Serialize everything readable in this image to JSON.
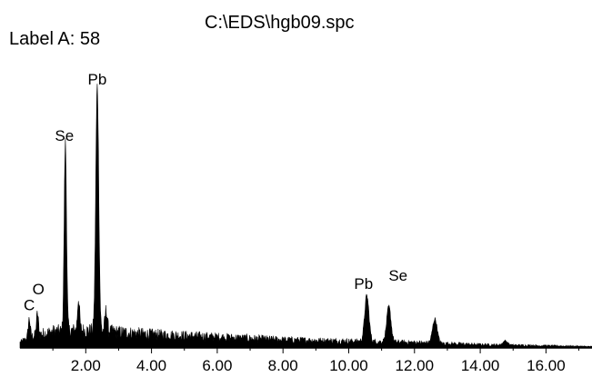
{
  "header": {
    "label_a": "Label A: 58",
    "file_path": "C:\\EDS\\hgb09.spc"
  },
  "chart_data": {
    "type": "line",
    "title": "",
    "xlabel": "",
    "ylabel": "",
    "xlim": [
      0.0,
      17.4
    ],
    "ylim": [
      0,
      100
    ],
    "grid": false,
    "line_color": "#000000",
    "x_ticks": [
      2.0,
      4.0,
      6.0,
      8.0,
      10.0,
      12.0,
      14.0,
      16.0
    ],
    "x_tick_labels": [
      "2.00",
      "4.00",
      "6.00",
      "8.00",
      "10.00",
      "12.00",
      "14.00",
      "16.00"
    ],
    "baseline": [
      [
        0.0,
        2
      ],
      [
        0.3,
        4
      ],
      [
        0.6,
        5
      ],
      [
        1.0,
        6
      ],
      [
        1.8,
        6.5
      ],
      [
        2.8,
        6
      ],
      [
        4.0,
        5
      ],
      [
        6.0,
        4
      ],
      [
        8.0,
        3
      ],
      [
        10.0,
        2.5
      ],
      [
        12.0,
        2
      ],
      [
        14.0,
        1.2
      ],
      [
        16.0,
        0.8
      ],
      [
        17.4,
        0.5
      ]
    ],
    "peaks": [
      {
        "x": 0.28,
        "y": 7,
        "width": 0.03,
        "label": "C"
      },
      {
        "x": 0.53,
        "y": 8,
        "width": 0.03,
        "label": "O"
      },
      {
        "x": 1.38,
        "y": 70,
        "width": 0.035,
        "label": "Se"
      },
      {
        "x": 1.78,
        "y": 12,
        "width": 0.03,
        "label": ""
      },
      {
        "x": 2.35,
        "y": 91,
        "width": 0.045,
        "label": "Pb"
      },
      {
        "x": 2.62,
        "y": 8,
        "width": 0.035,
        "label": ""
      },
      {
        "x": 10.55,
        "y": 17,
        "width": 0.065,
        "label": "Pb"
      },
      {
        "x": 11.22,
        "y": 13,
        "width": 0.065,
        "label": "Se"
      },
      {
        "x": 12.62,
        "y": 9,
        "width": 0.07,
        "label": ""
      },
      {
        "x": 14.76,
        "y": 1.5,
        "width": 0.07,
        "label": ""
      }
    ],
    "peak_labels": [
      {
        "text": "C",
        "x": 0.28,
        "y": 14
      },
      {
        "text": "O",
        "x": 0.56,
        "y": 20
      },
      {
        "text": "Se",
        "x": 1.35,
        "y": 77
      },
      {
        "text": "Pb",
        "x": 2.35,
        "y": 98
      },
      {
        "text": "Pb",
        "x": 10.45,
        "y": 22
      },
      {
        "text": "Se",
        "x": 11.5,
        "y": 25
      }
    ]
  }
}
